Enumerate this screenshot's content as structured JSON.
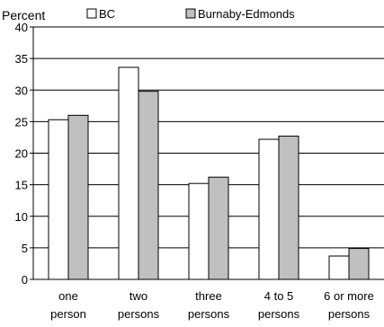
{
  "chart_data": {
    "type": "bar",
    "ylabel": "Percent",
    "ylim": [
      0,
      40
    ],
    "yticks": [
      0,
      5,
      10,
      15,
      20,
      25,
      30,
      35,
      40
    ],
    "grid": true,
    "legend_position": "top",
    "categories": [
      [
        "one",
        "person"
      ],
      [
        "two",
        "persons"
      ],
      [
        "three",
        "persons"
      ],
      [
        "4 to 5",
        "persons"
      ],
      [
        "6 or more",
        "persons"
      ]
    ],
    "series": [
      {
        "name": "BC",
        "color": "#ffffff",
        "values": [
          25.3,
          33.6,
          15.2,
          22.2,
          3.7
        ]
      },
      {
        "name": "Burnaby-Edmonds",
        "color": "#c0c0c0",
        "values": [
          26.0,
          29.8,
          16.2,
          22.7,
          4.9
        ]
      }
    ]
  }
}
